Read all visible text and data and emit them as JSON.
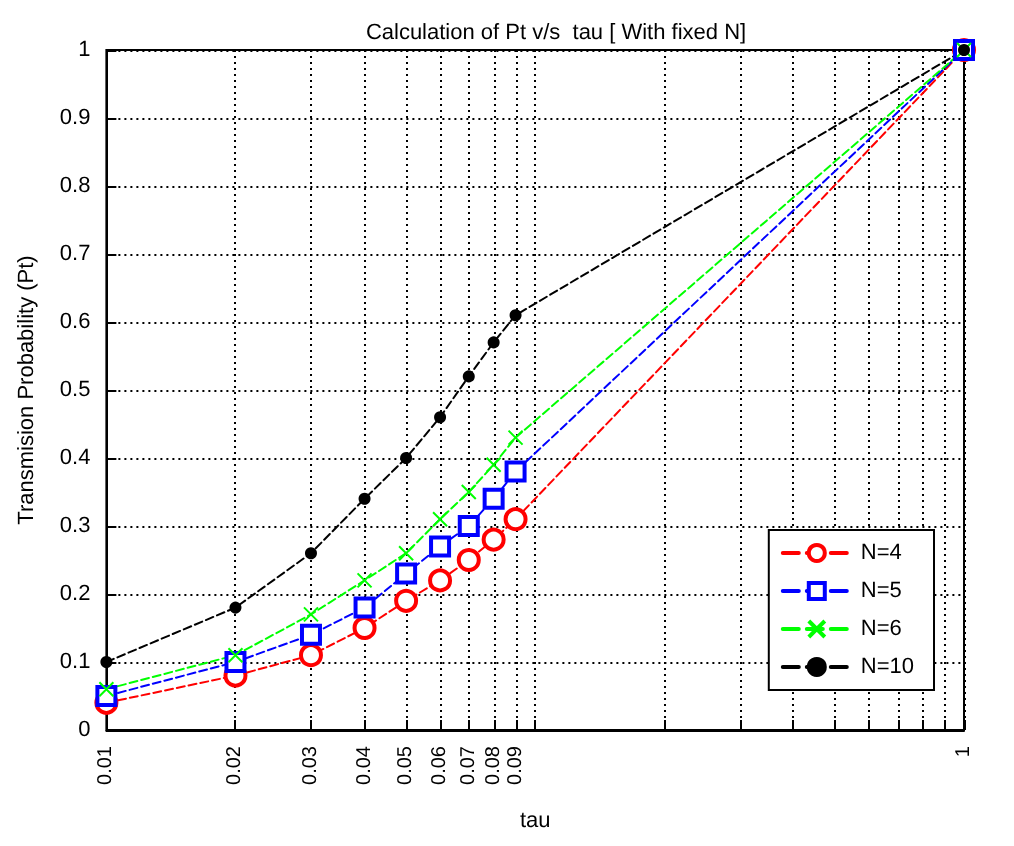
{
  "chart_data": {
    "type": "line",
    "title": "Calculation of Pt v/s  tau [ With fixed N]",
    "xlabel": "tau",
    "ylabel": "Transmision Probability (Pt)",
    "log": "x",
    "grid": true,
    "legend": "bottom right",
    "line_style": "dashed",
    "x": [
      0.01,
      0.02,
      0.03,
      0.04,
      0.05,
      0.06,
      0.07,
      0.08,
      0.09,
      1
    ],
    "xlim": [
      0.01,
      1
    ],
    "xticks": [
      0.01,
      0.02,
      0.03,
      0.04,
      0.05,
      0.06,
      0.07,
      0.08,
      0.09,
      {
        "value": 0.1,
        "label": null
      },
      {
        "value": 0.2,
        "label": null
      },
      {
        "value": 0.3,
        "label": null
      },
      {
        "value": 0.4,
        "label": null
      },
      {
        "value": 0.5,
        "label": null
      },
      {
        "value": 0.6,
        "label": null
      },
      {
        "value": 0.7,
        "label": null
      },
      {
        "value": 0.8,
        "label": null
      },
      {
        "value": 0.9,
        "label": null
      },
      1
    ],
    "ylim": [
      0,
      1
    ],
    "yticks": [
      0,
      0.1,
      0.2,
      0.3,
      0.4,
      0.5,
      0.6,
      0.7,
      0.8,
      0.9,
      1
    ],
    "series": [
      {
        "name": "N=4",
        "color": "#ff0000",
        "marker": "circle",
        "values": [
          0.04,
          0.08,
          0.11,
          0.15,
          0.19,
          0.22,
          0.25,
          0.28,
          0.31,
          1
        ]
      },
      {
        "name": "N=5",
        "color": "#0000ff",
        "marker": "square",
        "values": [
          0.05,
          0.1,
          0.14,
          0.18,
          0.23,
          0.27,
          0.3,
          0.34,
          0.38,
          1
        ]
      },
      {
        "name": "N=6",
        "color": "#00ff00",
        "marker": "cross",
        "values": [
          0.06,
          0.11,
          0.17,
          0.22,
          0.26,
          0.31,
          0.35,
          0.39,
          0.43,
          1
        ]
      },
      {
        "name": "N=10",
        "color": "#000000",
        "marker": "dot",
        "values": [
          0.1,
          0.18,
          0.26,
          0.34,
          0.4,
          0.46,
          0.52,
          0.57,
          0.61,
          1
        ]
      }
    ]
  }
}
